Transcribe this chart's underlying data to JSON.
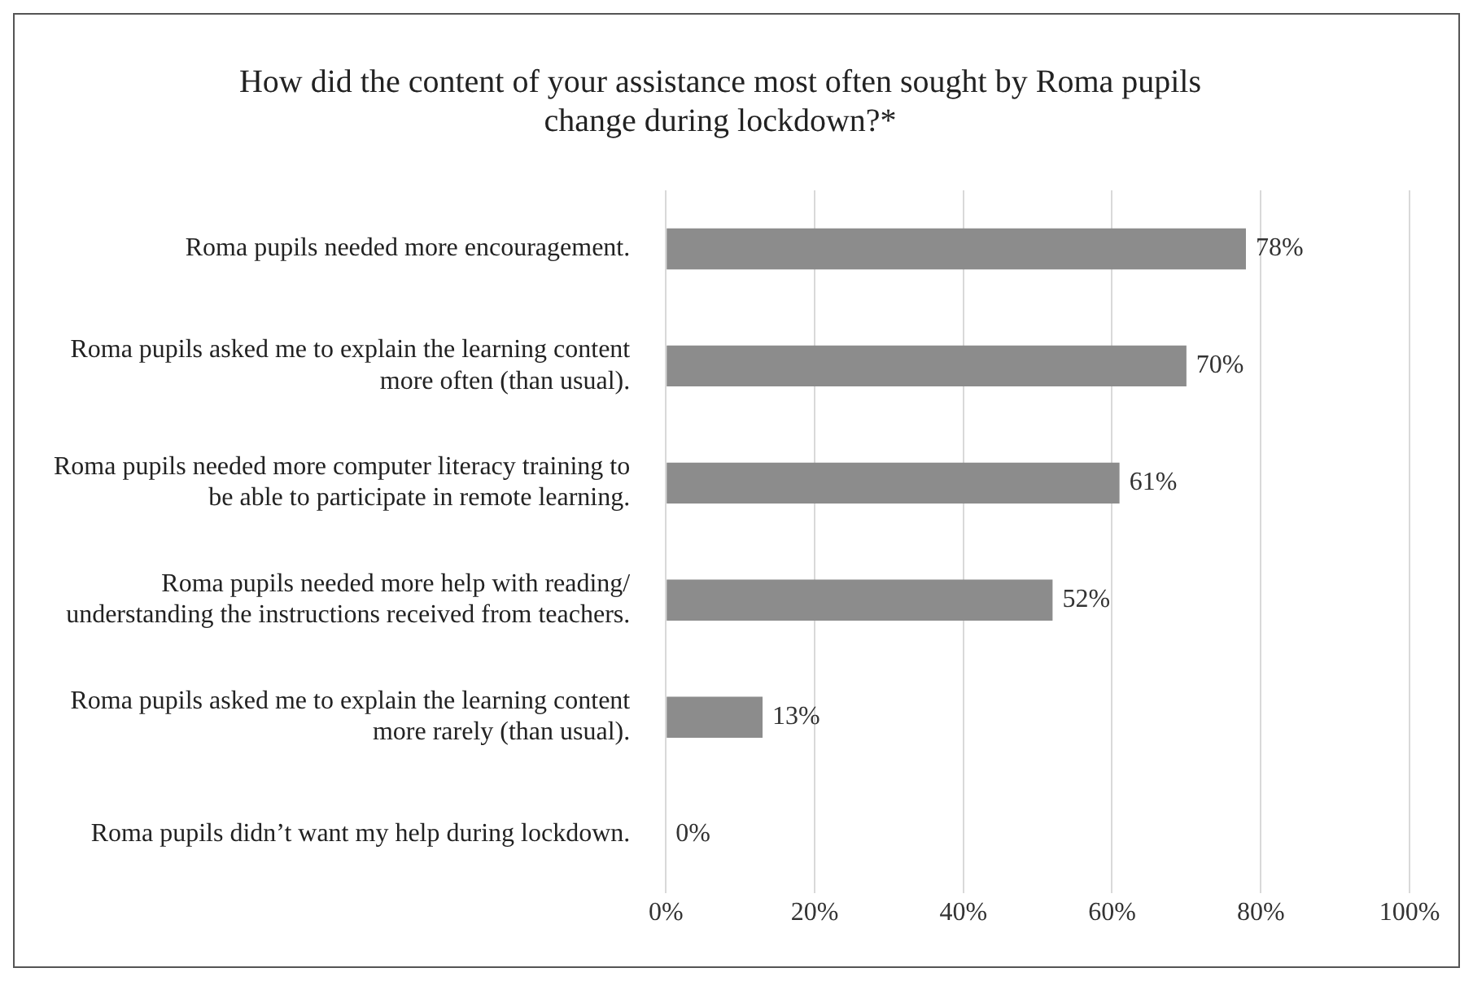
{
  "chart_data": {
    "type": "bar",
    "orientation": "horizontal",
    "title": "How did the content of your assistance most often sought by Roma pupils change during lockdown?*",
    "categories": [
      "Roma pupils needed more encouragement.",
      "Roma pupils asked me to explain the learning content more often (than usual).",
      "Roma pupils needed more computer literacy training to be able to participate in remote learning.",
      "Roma pupils needed more help with reading/ understanding the instructions received from teachers.",
      "Roma pupils asked me to explain the learning content more rarely (than usual).",
      "Roma pupils didn’t want my help during lockdown."
    ],
    "values": [
      78,
      70,
      61,
      52,
      13,
      0
    ],
    "value_labels": [
      "78%",
      "70%",
      "61%",
      "52%",
      "13%",
      "0%"
    ],
    "color": "#8c8c8c",
    "xlim": [
      0,
      100
    ],
    "xticks": [
      {
        "value": 0,
        "label": "0%"
      },
      {
        "value": 20,
        "label": "20%"
      },
      {
        "value": 40,
        "label": "40%"
      },
      {
        "value": 60,
        "label": "60%"
      },
      {
        "value": 80,
        "label": "80%"
      },
      {
        "value": 100,
        "label": "100%"
      }
    ],
    "grid": "x",
    "legend": false
  }
}
